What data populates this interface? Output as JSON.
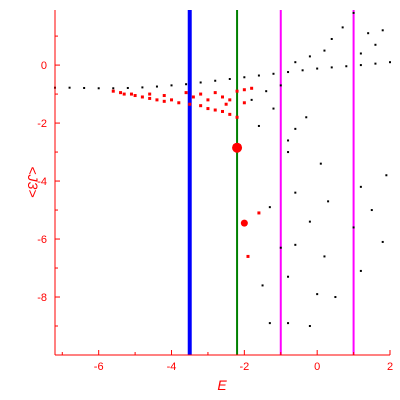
{
  "chart_data": {
    "type": "scatter",
    "xlabel": "E",
    "ylabel": "<J3>",
    "xlim": [
      -7.2,
      2.0
    ],
    "ylim": [
      -10.0,
      1.9
    ],
    "x_ticks": [
      -6,
      -4,
      -2,
      0,
      2
    ],
    "y_ticks": [
      0,
      -2,
      -4,
      -6,
      -8
    ],
    "x_tick_labels": [
      "-6",
      "-4",
      "-2",
      "0",
      "2"
    ],
    "y_tick_labels": [
      "0",
      "-2",
      "-4",
      "-6",
      "-8"
    ],
    "grid": false,
    "legend": "none",
    "colors": {
      "axis": "#ff0000",
      "black_points": "#000000",
      "red_points": "#ff0000",
      "line_blue": "#0000ff",
      "line_green": "#008000",
      "line_magenta": "#ff00ff"
    },
    "vertical_lines": [
      {
        "x": -3.5,
        "color": "#0000ff",
        "width": 4
      },
      {
        "x": -2.2,
        "color": "#008000",
        "width": 2
      },
      {
        "x": -1.0,
        "color": "#ff00ff",
        "width": 2
      },
      {
        "x": 1.0,
        "color": "#ff00ff",
        "width": 2
      }
    ],
    "black_series": [
      {
        "x": -7.2,
        "y": -0.78
      },
      {
        "x": -6.8,
        "y": -0.78
      },
      {
        "x": -6.4,
        "y": -0.79
      },
      {
        "x": -6.0,
        "y": -0.8
      },
      {
        "x": -5.6,
        "y": -0.8
      },
      {
        "x": -5.2,
        "y": -0.79
      },
      {
        "x": -4.8,
        "y": -0.77
      },
      {
        "x": -4.4,
        "y": -0.74
      },
      {
        "x": -4.0,
        "y": -0.7
      },
      {
        "x": -3.6,
        "y": -0.66
      },
      {
        "x": -3.2,
        "y": -0.6
      },
      {
        "x": -2.8,
        "y": -0.54
      },
      {
        "x": -2.4,
        "y": -0.48
      },
      {
        "x": -2.0,
        "y": -0.42
      },
      {
        "x": -1.6,
        "y": -0.36
      },
      {
        "x": -1.2,
        "y": -0.3
      },
      {
        "x": -0.8,
        "y": -0.24
      },
      {
        "x": -0.4,
        "y": -0.18
      },
      {
        "x": 0.0,
        "y": -0.12
      },
      {
        "x": 0.4,
        "y": -0.08
      },
      {
        "x": 0.8,
        "y": -0.04
      },
      {
        "x": 1.2,
        "y": 0.0
      },
      {
        "x": 1.6,
        "y": 0.05
      },
      {
        "x": 2.0,
        "y": 0.1
      },
      {
        "x": 1.0,
        "y": 1.8
      },
      {
        "x": 0.7,
        "y": 1.3
      },
      {
        "x": 1.4,
        "y": 1.1
      },
      {
        "x": 1.8,
        "y": 1.2
      },
      {
        "x": 0.4,
        "y": 0.9
      },
      {
        "x": 1.6,
        "y": 0.7
      },
      {
        "x": 0.2,
        "y": 0.5
      },
      {
        "x": 1.2,
        "y": 0.4
      },
      {
        "x": -0.2,
        "y": 0.3
      },
      {
        "x": -0.6,
        "y": 0.1
      },
      {
        "x": -1.0,
        "y": -0.7
      },
      {
        "x": -1.4,
        "y": -0.9
      },
      {
        "x": -1.8,
        "y": -1.2
      },
      {
        "x": -2.6,
        "y": -1.1
      },
      {
        "x": -1.2,
        "y": -1.5
      },
      {
        "x": -0.6,
        "y": -2.2
      },
      {
        "x": -0.8,
        "y": -2.6
      },
      {
        "x": -0.3,
        "y": -1.8
      },
      {
        "x": -1.6,
        "y": -2.1
      },
      {
        "x": -0.8,
        "y": -3.0
      },
      {
        "x": 0.1,
        "y": -3.4
      },
      {
        "x": 1.9,
        "y": -3.8
      },
      {
        "x": 1.2,
        "y": -4.2
      },
      {
        "x": -0.6,
        "y": -4.4
      },
      {
        "x": 0.3,
        "y": -4.7
      },
      {
        "x": 1.5,
        "y": -5.0
      },
      {
        "x": -1.3,
        "y": -4.9
      },
      {
        "x": -0.2,
        "y": -5.4
      },
      {
        "x": 1.0,
        "y": -5.6
      },
      {
        "x": -1.0,
        "y": -6.3
      },
      {
        "x": 0.2,
        "y": -6.6
      },
      {
        "x": 1.8,
        "y": -6.1
      },
      {
        "x": -0.6,
        "y": -6.2
      },
      {
        "x": 1.2,
        "y": -7.1
      },
      {
        "x": -1.5,
        "y": -7.6
      },
      {
        "x": -0.8,
        "y": -7.3
      },
      {
        "x": 0.0,
        "y": -7.9
      },
      {
        "x": 0.5,
        "y": -8.0
      },
      {
        "x": -1.3,
        "y": -8.9
      },
      {
        "x": -0.8,
        "y": -8.9
      },
      {
        "x": -0.2,
        "y": -9.0
      }
    ],
    "red_series": [
      {
        "x": -5.6,
        "y": -0.9
      },
      {
        "x": -5.3,
        "y": -1.0
      },
      {
        "x": -5.0,
        "y": -1.05
      },
      {
        "x": -4.8,
        "y": -1.1
      },
      {
        "x": -4.6,
        "y": -1.15
      },
      {
        "x": -4.4,
        "y": -1.2
      },
      {
        "x": -4.2,
        "y": -1.25
      },
      {
        "x": -4.0,
        "y": -1.2
      },
      {
        "x": -3.8,
        "y": -1.3
      },
      {
        "x": -3.5,
        "y": -1.35
      },
      {
        "x": -3.2,
        "y": -1.4
      },
      {
        "x": -3.0,
        "y": -1.5
      },
      {
        "x": -2.8,
        "y": -1.55
      },
      {
        "x": -2.6,
        "y": -1.6
      },
      {
        "x": -2.4,
        "y": -1.7
      },
      {
        "x": -2.2,
        "y": -1.8
      },
      {
        "x": -4.6,
        "y": -1.0
      },
      {
        "x": -4.2,
        "y": -1.05
      },
      {
        "x": -3.6,
        "y": -0.95
      },
      {
        "x": -3.2,
        "y": -1.0
      },
      {
        "x": -2.8,
        "y": -0.95
      },
      {
        "x": -2.6,
        "y": -1.1
      },
      {
        "x": -2.4,
        "y": -1.2
      },
      {
        "x": -2.2,
        "y": -0.9
      },
      {
        "x": -2.0,
        "y": -0.85
      },
      {
        "x": -2.0,
        "y": -1.3
      },
      {
        "x": -1.8,
        "y": -0.8
      },
      {
        "x": -5.4,
        "y": -0.95
      },
      {
        "x": -5.1,
        "y": -1.0
      },
      {
        "x": -3.4,
        "y": -1.1
      },
      {
        "x": -3.0,
        "y": -1.2
      },
      {
        "x": -2.5,
        "y": -1.35
      },
      {
        "x": -2.2,
        "y": -2.85
      },
      {
        "x": -2.0,
        "y": -5.45
      },
      {
        "x": -1.9,
        "y": -6.6
      },
      {
        "x": -1.6,
        "y": -5.1
      }
    ],
    "highlight_points": [
      {
        "x": -2.2,
        "y": -2.85
      },
      {
        "x": -2.0,
        "y": -5.45
      }
    ]
  }
}
